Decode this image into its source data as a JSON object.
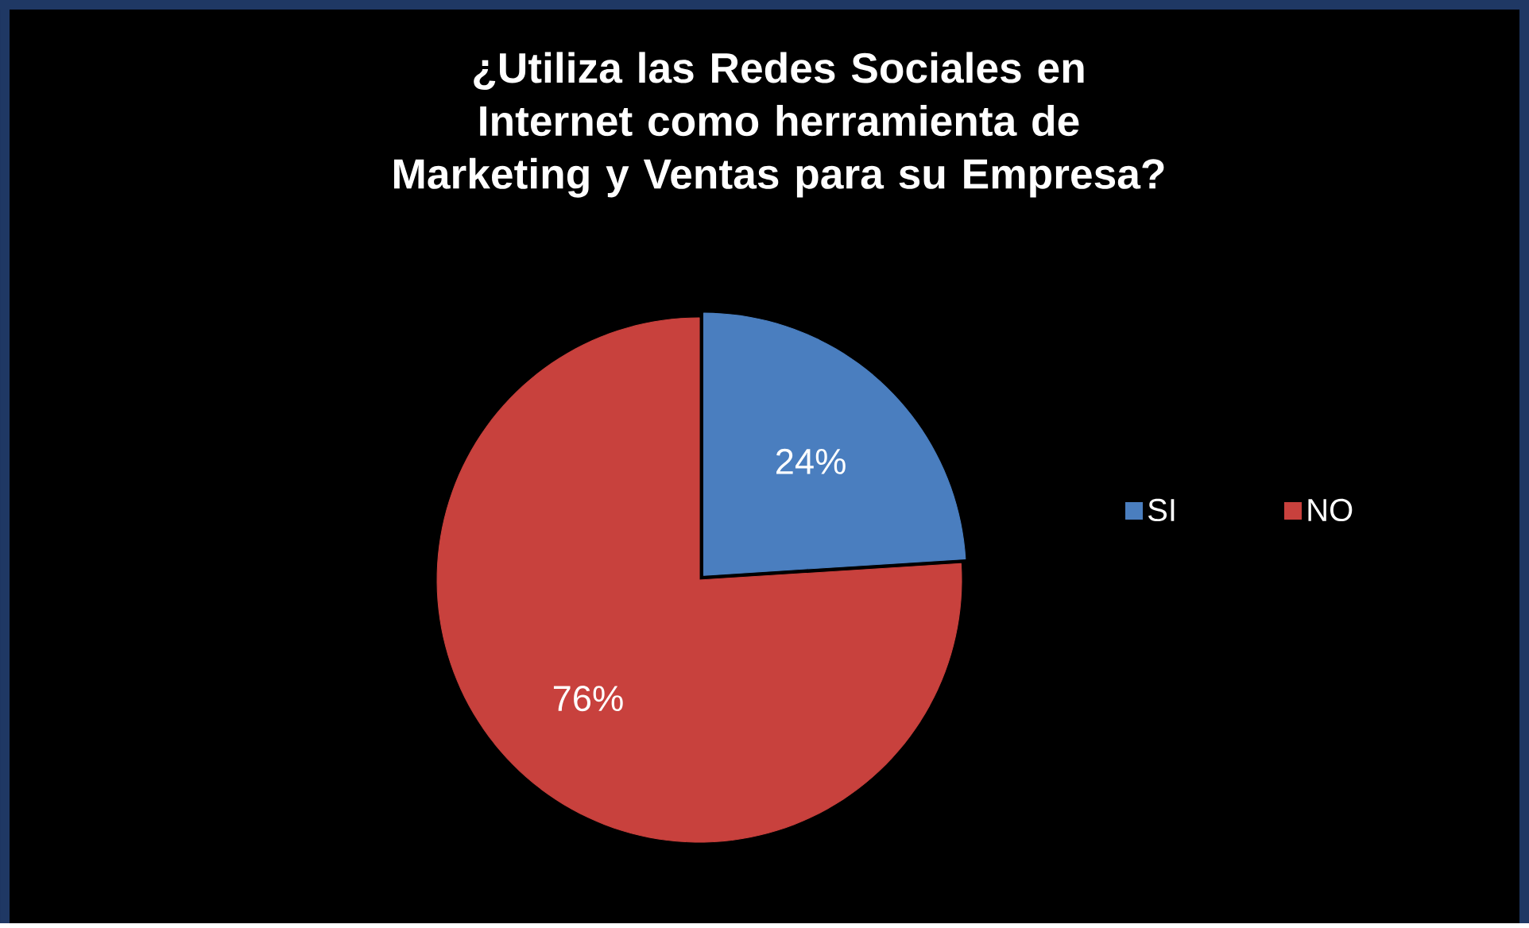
{
  "chart_data": {
    "type": "pie",
    "title": "¿Utiliza las Redes Sociales en Internet como herramienta de Marketing y Ventas para su Empresa?",
    "categories": [
      "SI",
      "NO"
    ],
    "values": [
      24,
      76
    ],
    "colors": [
      "#4a7ebf",
      "#c8413d"
    ],
    "value_labels": [
      "24%",
      "76%"
    ],
    "legend": "right"
  }
}
